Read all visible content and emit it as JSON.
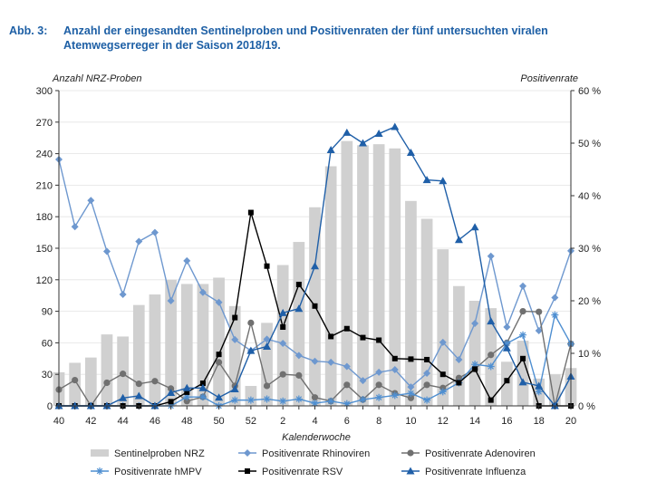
{
  "caption": {
    "label": "Abb. 3:",
    "text": "Anzahl der eingesandten Sentinelproben und Positivenraten der fünf untersuchten viralen Atemwegserreger in der Saison 2018/19."
  },
  "chart_data": {
    "type": "bar+line",
    "xlabel": "Kalenderwoche",
    "ylabel_left": "Anzahl NRZ-Proben",
    "ylabel_right": "Positivenrate",
    "ylim_left": [
      0,
      300
    ],
    "ylim_right": [
      0,
      60
    ],
    "yticks_left": [
      "0",
      "30",
      "60",
      "90",
      "120",
      "150",
      "180",
      "210",
      "240",
      "270",
      "300"
    ],
    "yticks_right": [
      "0 %",
      "10 %",
      "20 %",
      "30 %",
      "40 %",
      "50 %",
      "60 %"
    ],
    "xticks": [
      "40",
      "42",
      "44",
      "46",
      "48",
      "50",
      "52",
      "2",
      "4",
      "6",
      "8",
      "10",
      "12",
      "14",
      "16",
      "18",
      "20"
    ],
    "weeks": [
      40,
      41,
      42,
      43,
      44,
      45,
      46,
      47,
      48,
      49,
      50,
      51,
      52,
      1,
      2,
      3,
      4,
      5,
      6,
      7,
      8,
      9,
      10,
      11,
      12,
      13,
      14,
      15,
      16,
      17,
      18,
      19,
      20
    ],
    "bars": {
      "name": "Sentinelproben NRZ",
      "color": "#d0d0d0",
      "values": [
        32,
        41,
        46,
        68,
        66,
        96,
        106,
        120,
        116,
        116,
        122,
        95,
        19,
        79,
        134,
        156,
        189,
        228,
        252,
        248,
        249,
        245,
        195,
        178,
        149,
        114,
        100,
        93,
        42,
        62,
        26,
        30,
        36
      ]
    },
    "series": [
      {
        "name": "Positivenrate Rhinoviren",
        "color": "#6e98cf",
        "marker": "diamond",
        "values": [
          46.9,
          34.1,
          39.1,
          29.4,
          21.2,
          31.3,
          33.0,
          20.0,
          27.6,
          21.6,
          19.7,
          12.6,
          10.5,
          12.7,
          11.9,
          9.6,
          8.5,
          8.3,
          7.5,
          4.8,
          6.4,
          6.9,
          3.6,
          6.2,
          12.1,
          8.8,
          15.7,
          28.5,
          15.0,
          22.8,
          14.3,
          20.6,
          29.5
        ]
      },
      {
        "name": "Positivenrate Adenoviren",
        "color": "#707070",
        "marker": "circle",
        "values": [
          3.1,
          4.9,
          0,
          4.4,
          6.1,
          4.2,
          4.7,
          3.3,
          0.9,
          1.7,
          8.3,
          3.8,
          15.8,
          3.8,
          6.0,
          5.8,
          1.6,
          0.9,
          4.0,
          1.2,
          4.0,
          2.4,
          1.5,
          4.0,
          3.4,
          5.3,
          7.0,
          9.7,
          12.0,
          18.0,
          17.9,
          0,
          11.8
        ]
      },
      {
        "name": "Positivenrate hMPV",
        "color": "#4f8fd1",
        "marker": "asterisk",
        "values": [
          0,
          0,
          0,
          0,
          0,
          0,
          0,
          0,
          1.7,
          1.7,
          0,
          1.1,
          1.1,
          1.3,
          0.9,
          1.3,
          0.5,
          0.9,
          0.4,
          1.2,
          1.6,
          2.0,
          2.4,
          1.1,
          2.7,
          4.4,
          7.9,
          7.5,
          11.9,
          13.5,
          2.7,
          17.3,
          11.8
        ]
      },
      {
        "name": "Positivenrate RSV",
        "color": "#000000",
        "marker": "square",
        "values": [
          0,
          0,
          0,
          0,
          0,
          0,
          0,
          0.8,
          2.6,
          4.3,
          9.8,
          16.8,
          36.8,
          26.6,
          15.0,
          23.1,
          19.0,
          13.2,
          14.7,
          13.0,
          12.5,
          9.0,
          8.9,
          8.8,
          6.0,
          4.4,
          7.0,
          1.1,
          4.8,
          9.0,
          0,
          0,
          0
        ]
      },
      {
        "name": "Positivenrate Influenza",
        "color": "#1f5fa8",
        "marker": "triangle",
        "values": [
          0,
          0,
          0,
          0,
          1.5,
          1.9,
          0,
          2.5,
          3.4,
          3.4,
          1.6,
          3.2,
          10.5,
          11.3,
          17.7,
          18.5,
          26.6,
          48.7,
          52.0,
          50.0,
          51.8,
          53.1,
          48.2,
          43.0,
          42.8,
          31.6,
          34.0,
          16.1,
          11.0,
          4.5,
          3.8,
          0,
          5.6
        ]
      }
    ],
    "legend_position": "bottom"
  }
}
